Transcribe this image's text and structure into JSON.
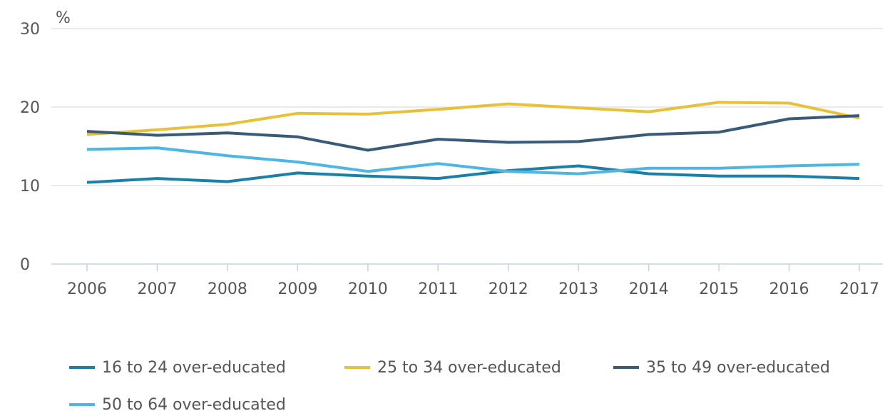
{
  "chart_data": {
    "type": "line",
    "y_label": "%",
    "categories": [
      "2006",
      "2007",
      "2008",
      "2009",
      "2010",
      "2011",
      "2012",
      "2013",
      "2014",
      "2015",
      "2016",
      "2017"
    ],
    "series": [
      {
        "name": "16 to 24 over-educated",
        "color": "#1c7fa6",
        "values": [
          10.4,
          10.9,
          10.5,
          11.6,
          11.2,
          10.9,
          11.9,
          12.5,
          11.5,
          11.2,
          11.2,
          10.9
        ]
      },
      {
        "name": "25 to 34 over-educated",
        "color": "#e8c13b",
        "values": [
          16.5,
          17.1,
          17.8,
          19.2,
          19.1,
          19.7,
          20.4,
          19.9,
          19.4,
          20.6,
          20.5,
          18.6
        ]
      },
      {
        "name": "35 to 49 over-educated",
        "color": "#3a5a7a",
        "values": [
          16.9,
          16.4,
          16.7,
          16.2,
          14.5,
          15.9,
          15.5,
          15.6,
          16.5,
          16.8,
          18.5,
          18.9
        ]
      },
      {
        "name": "50 to 64 over-educated",
        "color": "#4db6e2",
        "values": [
          14.6,
          14.8,
          13.8,
          13.0,
          11.8,
          12.8,
          11.8,
          11.5,
          12.2,
          12.2,
          12.5,
          12.7
        ]
      }
    ],
    "ylim": [
      0,
      30
    ],
    "yticks": [
      0,
      10,
      20,
      30
    ],
    "grid": true
  }
}
